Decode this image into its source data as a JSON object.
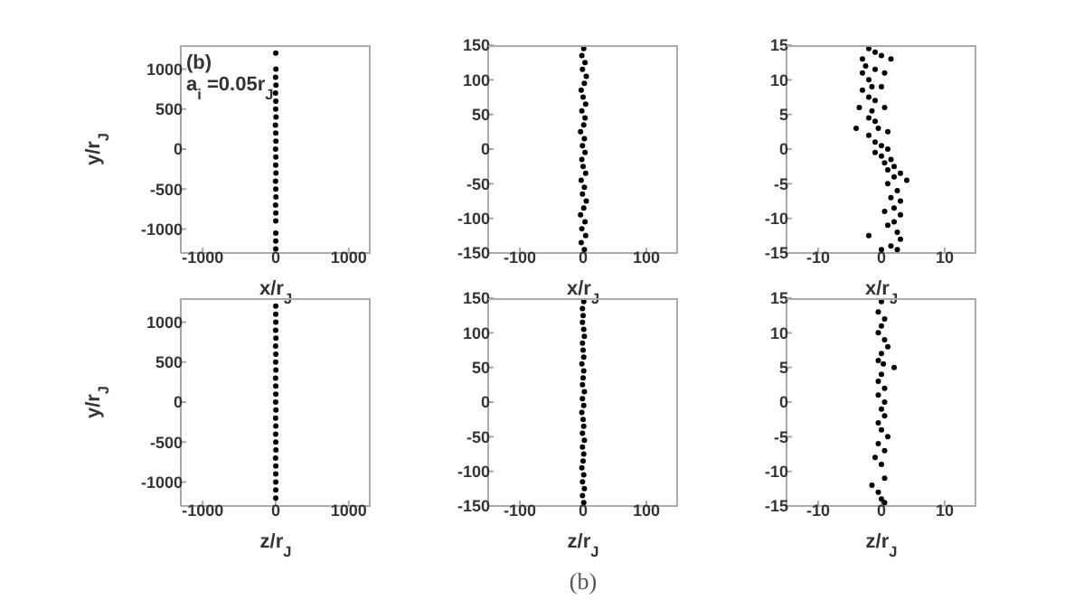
{
  "chart_data": [
    {
      "type": "scatter",
      "ylabel": "y/r$_{J}$",
      "xlabel": "x/r$_{J}$",
      "annotations": [
        "(b)",
        "a$_{i}$=0.05r$_{J}$"
      ],
      "marker": "circle",
      "xlim": [
        -1300,
        1300
      ],
      "ylim": [
        -1300,
        1300
      ],
      "xticks": [
        -1000,
        0,
        1000
      ],
      "yticks": [
        -1000,
        -500,
        0,
        500,
        1000
      ],
      "series": [
        {
          "color": "#000000",
          "x": [
            0,
            2,
            -2,
            3,
            -3,
            1,
            -1,
            4,
            -4,
            0,
            2,
            -2,
            1,
            -1,
            3,
            -3,
            0,
            2,
            -2,
            1,
            0,
            0,
            0,
            0
          ],
          "values": [
            1200,
            1000,
            900,
            800,
            700,
            600,
            500,
            400,
            300,
            200,
            100,
            0,
            -100,
            -200,
            -300,
            -400,
            -500,
            -600,
            -700,
            -800,
            -900,
            -1050,
            -1150,
            -1250
          ]
        }
      ]
    },
    {
      "type": "scatter",
      "xlabel": "x/r$_{J}$",
      "marker": "circle",
      "xlim": [
        -150,
        150
      ],
      "ylim": [
        -150,
        150
      ],
      "xticks": [
        -100,
        0,
        100
      ],
      "yticks": [
        -150,
        -100,
        -50,
        0,
        50,
        100,
        150
      ],
      "series": [
        {
          "color": "#000000",
          "x": [
            2,
            -3,
            4,
            -2,
            3,
            -4,
            1,
            5,
            -1,
            2,
            -3,
            4,
            0,
            -2,
            3,
            -1,
            2,
            -4,
            1,
            3,
            -2,
            4,
            0,
            -3,
            2,
            5,
            -1,
            3,
            -2,
            1
          ],
          "values": [
            -145,
            -135,
            -125,
            -115,
            -105,
            -95,
            -85,
            -75,
            -65,
            -55,
            -45,
            -35,
            -25,
            -15,
            -5,
            5,
            15,
            25,
            35,
            45,
            55,
            65,
            75,
            85,
            95,
            105,
            115,
            125,
            135,
            145
          ]
        }
      ]
    },
    {
      "type": "scatter",
      "xlabel": "x/r$_{J}$",
      "marker": "circle",
      "xlim": [
        -15,
        15
      ],
      "ylim": [
        -15,
        15
      ],
      "xticks": [
        -10,
        0,
        10
      ],
      "yticks": [
        -15,
        -10,
        -5,
        0,
        5,
        10,
        15
      ],
      "series": [
        {
          "color": "#000000",
          "x": [
            -2,
            -1,
            -3,
            0,
            1.5,
            -2.5,
            -1,
            -3,
            0.5,
            -2,
            -1.5,
            -3,
            0,
            -2,
            -1,
            -3.5,
            -1.5,
            0.5,
            -2,
            -1,
            -4,
            -0.5,
            -2,
            1,
            -1,
            0,
            -1,
            1,
            0,
            1.5,
            0.5,
            2,
            1,
            3,
            2,
            1,
            4,
            2.5,
            1.5,
            3,
            2,
            0.5,
            3,
            2,
            1,
            2.5,
            -2,
            3,
            1.5,
            0,
            2.5
          ],
          "values": [
            14.5,
            14,
            13,
            13.5,
            13,
            12,
            11.5,
            11,
            11,
            10,
            9,
            8.5,
            9,
            7.5,
            7,
            6,
            5.5,
            6,
            4.5,
            4,
            3,
            3,
            2,
            2.5,
            1,
            0.5,
            -0.5,
            0,
            -1,
            -1.5,
            -2,
            -2.5,
            -3,
            -3.5,
            -4,
            -5,
            -4.5,
            -6,
            -7,
            -7.5,
            -8.5,
            -9,
            -9.5,
            -10.5,
            -11,
            -12,
            -12.5,
            -13,
            -14,
            -14.5,
            -14.5
          ]
        }
      ]
    },
    {
      "type": "scatter",
      "ylabel": "y/r$_{J}$",
      "xlabel": "z/r$_{J}$",
      "marker": "circle",
      "xlim": [
        -1300,
        1300
      ],
      "ylim": [
        -1300,
        1300
      ],
      "xticks": [
        -1000,
        0,
        1000
      ],
      "yticks": [
        -1000,
        -500,
        0,
        500,
        1000
      ],
      "series": [
        {
          "color": "#000000",
          "x": [
            0,
            1,
            -1,
            2,
            -2,
            1,
            -1,
            2,
            -2,
            0,
            1,
            -1,
            2,
            -2,
            1,
            -1,
            0,
            2,
            -2,
            1,
            0,
            0,
            0,
            0,
            0
          ],
          "values": [
            1200,
            1000,
            900,
            800,
            700,
            600,
            500,
            400,
            300,
            200,
            100,
            0,
            -100,
            -200,
            -300,
            -400,
            -500,
            -600,
            -700,
            -800,
            -900,
            -1000,
            -1100,
            -1200,
            1100
          ]
        }
      ]
    },
    {
      "type": "scatter",
      "xlabel": "z/r$_{J}$",
      "annotations": [
        "(b)"
      ],
      "marker": "circle",
      "xlim": [
        -150,
        150
      ],
      "ylim": [
        -150,
        150
      ],
      "xticks": [
        -100,
        0,
        100
      ],
      "yticks": [
        -150,
        -100,
        -50,
        0,
        50,
        100,
        150
      ],
      "series": [
        {
          "color": "#000000",
          "x": [
            1,
            -1,
            2,
            -1,
            1,
            -2,
            0,
            1,
            -1,
            2,
            -1,
            1,
            0,
            -2,
            1,
            -1,
            2,
            -1,
            0,
            1,
            -2,
            1,
            0,
            -1,
            2,
            1,
            -1,
            0,
            -1,
            1
          ],
          "values": [
            -145,
            -135,
            -125,
            -115,
            -105,
            -95,
            -85,
            -75,
            -65,
            -55,
            -45,
            -35,
            -25,
            -15,
            -5,
            5,
            15,
            25,
            35,
            45,
            55,
            65,
            75,
            85,
            95,
            105,
            115,
            125,
            135,
            145
          ]
        }
      ]
    },
    {
      "type": "scatter",
      "xlabel": "z/r$_{J}$",
      "marker": "circle",
      "xlim": [
        -15,
        15
      ],
      "ylim": [
        -15,
        15
      ],
      "xticks": [
        -10,
        0,
        10
      ],
      "yticks": [
        -15,
        -10,
        -5,
        0,
        5,
        10,
        15
      ],
      "series": [
        {
          "color": "#000000",
          "x": [
            0,
            -0.5,
            0.5,
            0,
            -0.5,
            0.5,
            1,
            0,
            -0.5,
            0.3,
            2,
            0,
            -0.5,
            0.5,
            -0.5,
            0.5,
            0,
            0.5,
            -0.5,
            0,
            1,
            -0.5,
            0.5,
            -1,
            0,
            -1.5,
            0.5,
            -0.5,
            0,
            0.5
          ],
          "values": [
            14.5,
            13,
            12,
            11,
            10,
            9,
            8,
            7,
            6,
            5.5,
            5,
            4,
            3,
            2,
            1,
            0,
            -1,
            -2,
            -3,
            -4,
            -5,
            -6,
            -7,
            -8,
            -9,
            -12,
            -11,
            -13,
            -14,
            -14.5
          ]
        }
      ]
    }
  ]
}
